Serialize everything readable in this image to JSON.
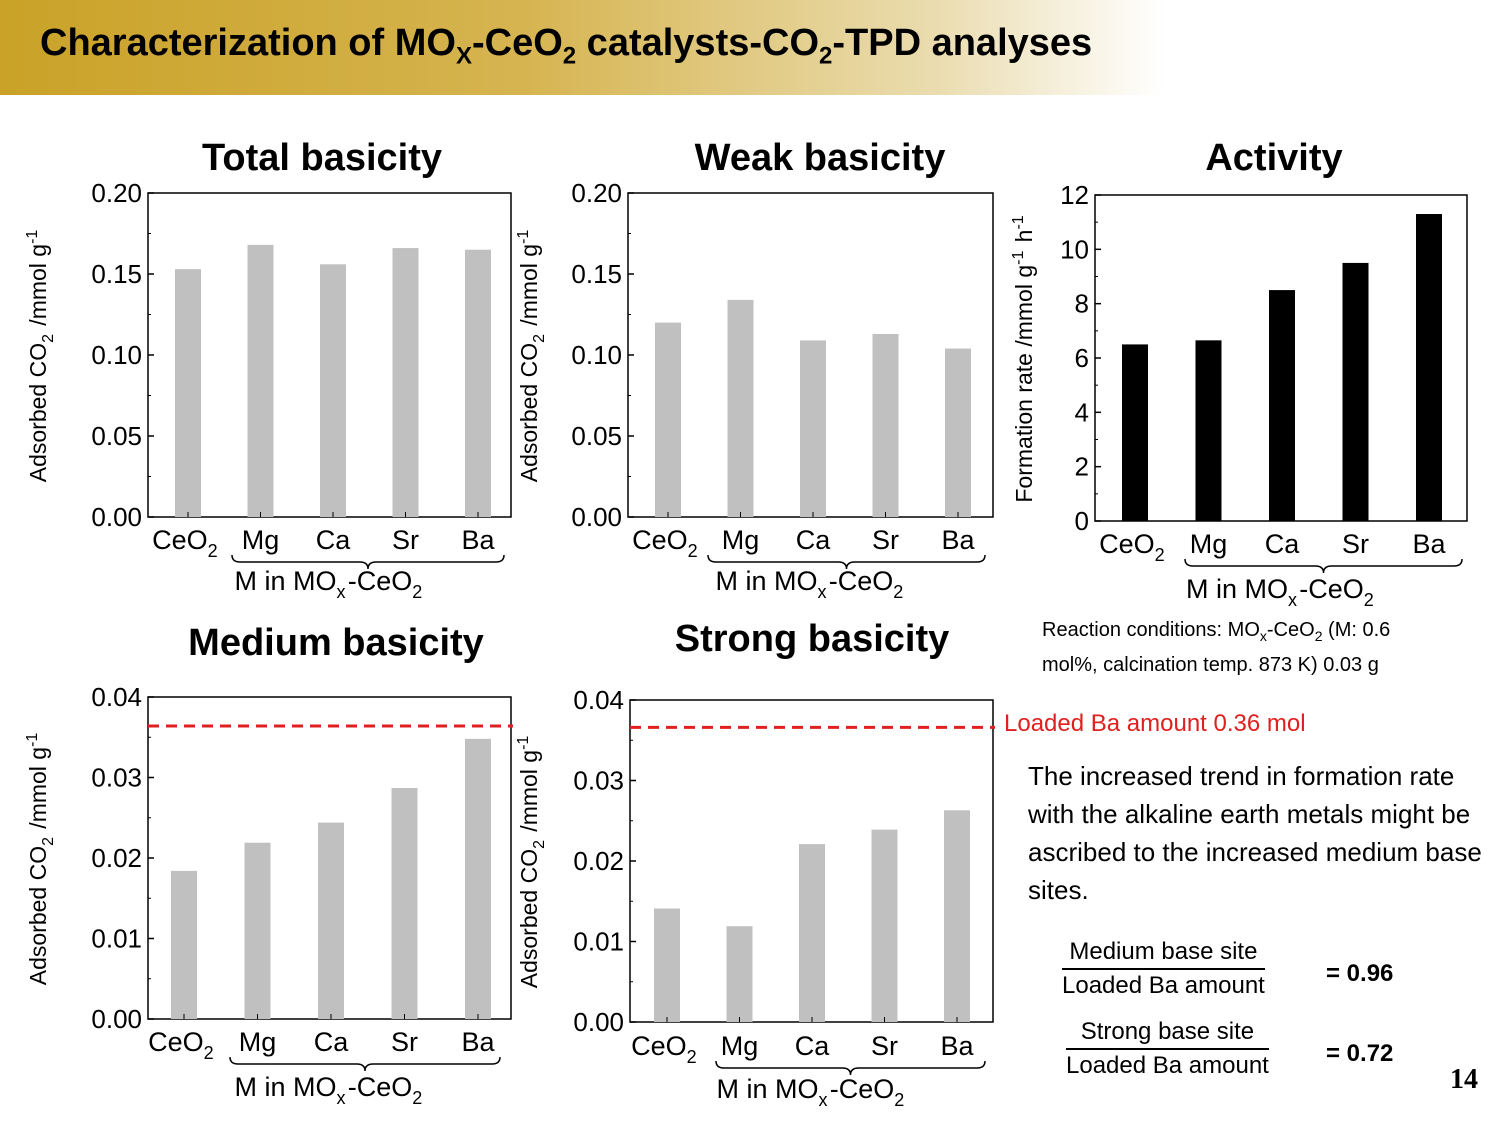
{
  "slide": {
    "title": {
      "t1": "Characterization of MO",
      "s1": "X",
      "t2": "-CeO",
      "s2": "2",
      "t3": " catalysts-CO",
      "s3": "2",
      "t4": "-TPD analyses"
    },
    "page_number": "14",
    "reaction_conditions": {
      "t1": "Reaction  conditions:  MO",
      "s1": "x",
      "t2": "-CeO",
      "s2": "2",
      "t3": "  (M:  0.6",
      "line2": "mol%, calcination temp. 873 K) 0.03 g"
    },
    "loaded_ba_label": "Loaded Ba amount 0.36 mol",
    "conclusion": "The increased trend in formation rate with the alkaline earth metals might be ascribed to the increased medium base sites.",
    "ratio_medium": {
      "numerator": "Medium base site",
      "denominator": "Loaded Ba amount",
      "value": "= 0.96"
    },
    "ratio_strong": {
      "numerator": "Strong base site",
      "denominator": "Loaded Ba amount",
      "value": "= 0.72"
    }
  },
  "colors": {
    "gray_bar": "#c0c0c0",
    "black_bar": "#000000",
    "dashed_line": "#e02020",
    "banner_gold": "#c9a227"
  },
  "chart_data": [
    {
      "id": "total",
      "type": "bar",
      "title": "Total basicity",
      "categories": [
        "CeO2",
        "Mg",
        "Ca",
        "Sr",
        "Ba"
      ],
      "values": [
        0.153,
        0.168,
        0.156,
        0.166,
        0.165
      ],
      "ylim": [
        0,
        0.2
      ],
      "yticks": [
        "0.00",
        "0.05",
        "0.10",
        "0.15",
        "0.20"
      ],
      "ylabel": "Adsorbed CO2 /mmol g-1",
      "xlabel": "M in MOx-CeO2",
      "color": "#c0c0c0"
    },
    {
      "id": "weak",
      "type": "bar",
      "title": "Weak basicity",
      "categories": [
        "CeO2",
        "Mg",
        "Ca",
        "Sr",
        "Ba"
      ],
      "values": [
        0.12,
        0.134,
        0.109,
        0.113,
        0.104
      ],
      "ylim": [
        0,
        0.2
      ],
      "yticks": [
        "0.00",
        "0.05",
        "0.10",
        "0.15",
        "0.20"
      ],
      "ylabel": "Adsorbed CO2 /mmol g-1",
      "xlabel": "M in MOx-CeO2",
      "color": "#c0c0c0"
    },
    {
      "id": "activity",
      "type": "bar",
      "title": "Activity",
      "categories": [
        "CeO2",
        "Mg",
        "Ca",
        "Sr",
        "Ba"
      ],
      "values": [
        6.5,
        6.65,
        8.5,
        9.5,
        11.3
      ],
      "ylim": [
        0,
        12
      ],
      "yticks": [
        "0",
        "2",
        "4",
        "6",
        "8",
        "10",
        "12"
      ],
      "ylabel": "Formation rate /mmol g-1 h-1",
      "xlabel": "M in MOx-CeO2",
      "color": "#000000"
    },
    {
      "id": "medium",
      "type": "bar",
      "title": "Medium basicity",
      "categories": [
        "CeO2",
        "Mg",
        "Ca",
        "Sr",
        "Ba"
      ],
      "values": [
        0.0184,
        0.0219,
        0.0244,
        0.0287,
        0.0348
      ],
      "ylim": [
        0,
        0.04
      ],
      "yticks": [
        "0.00",
        "0.01",
        "0.02",
        "0.03",
        "0.04"
      ],
      "ylabel": "Adsorbed CO2 /mmol g-1",
      "xlabel": "M in MOx-CeO2",
      "reference_line": 0.0364,
      "color": "#c0c0c0"
    },
    {
      "id": "strong",
      "type": "bar",
      "title": "Strong basicity",
      "categories": [
        "CeO2",
        "Mg",
        "Ca",
        "Sr",
        "Ba"
      ],
      "values": [
        0.0141,
        0.0119,
        0.0221,
        0.0239,
        0.0263
      ],
      "ylim": [
        0,
        0.04
      ],
      "yticks": [
        "0.00",
        "0.01",
        "0.02",
        "0.03",
        "0.04"
      ],
      "ylabel": "Adsorbed CO2 /mmol g-1",
      "xlabel": "M in MOx-CeO2",
      "reference_line": 0.0366,
      "color": "#c0c0c0"
    }
  ]
}
